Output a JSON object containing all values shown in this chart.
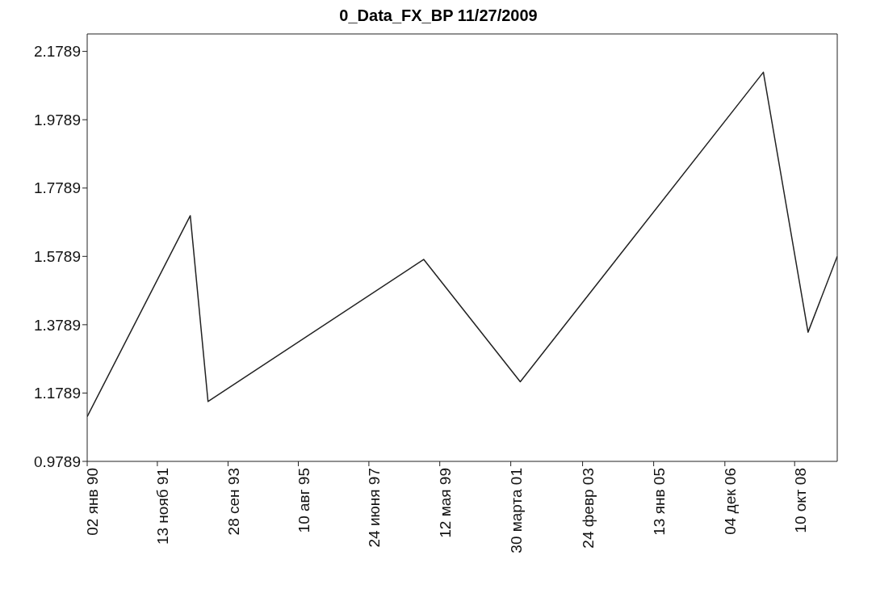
{
  "chart_data": {
    "type": "line",
    "title": "0_Data_FX_BP 11/27/2009",
    "x": [
      "1990-01-02",
      "1992-09-27",
      "1993-03-18",
      "1998-12-07",
      "2001-06-30",
      "2007-12-12",
      "2009-02-17",
      "2009-11-27"
    ],
    "series": [
      {
        "color": "#222222",
        "values": [
          1.11,
          1.698,
          1.154,
          1.57,
          1.212,
          2.118,
          1.357,
          1.579
        ]
      }
    ],
    "xlim": [
      "1990-01-02",
      "2009-11-27"
    ],
    "xticks": [
      {
        "value": "1990-01-02",
        "label": "02 янв 90"
      },
      {
        "value": "1991-11-13",
        "label": "13 нояб 91"
      },
      {
        "value": "1993-09-28",
        "label": "28 сен 93"
      },
      {
        "value": "1995-08-10",
        "label": "10 авг 95"
      },
      {
        "value": "1997-06-24",
        "label": "24 июня 97"
      },
      {
        "value": "1999-05-12",
        "label": "12 мая 99"
      },
      {
        "value": "2001-03-30",
        "label": "30 марта 01"
      },
      {
        "value": "2003-02-24",
        "label": "24 февр 03"
      },
      {
        "value": "2005-01-13",
        "label": "13 янв 05"
      },
      {
        "value": "2006-12-04",
        "label": "04 дек 06"
      },
      {
        "value": "2008-10-10",
        "label": "10 окт 08"
      }
    ],
    "ylim": [
      0.9789,
      2.23
    ],
    "yticks": [
      0.9789,
      1.1789,
      1.3789,
      1.5789,
      1.7789,
      1.9789,
      2.1789
    ],
    "grid": false,
    "legend": false,
    "marker": "none",
    "line_style": "solid"
  }
}
